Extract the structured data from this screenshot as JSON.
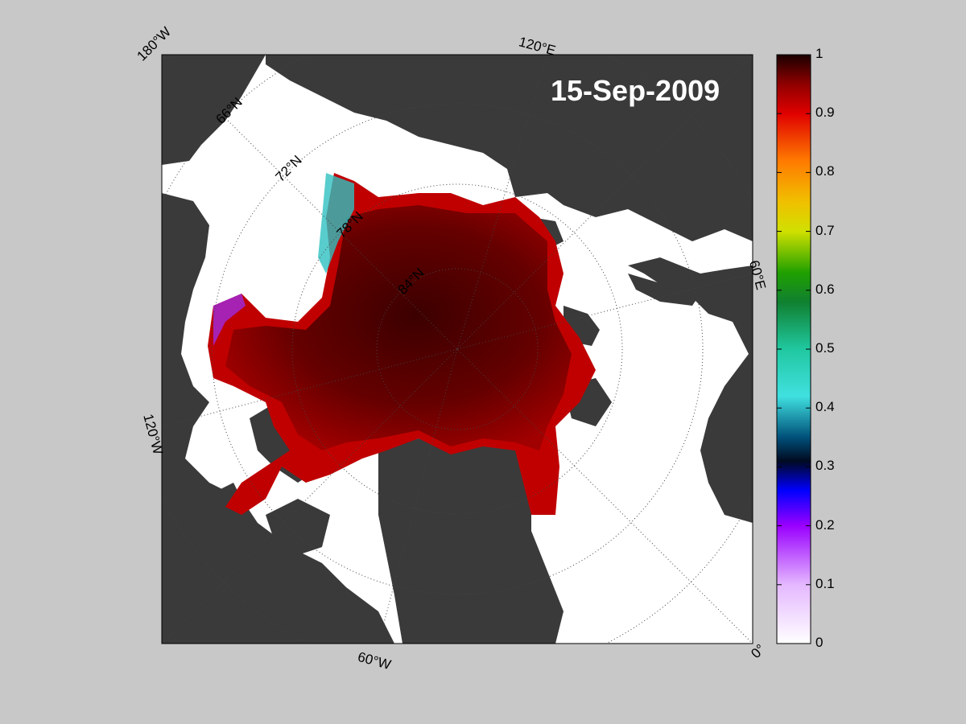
{
  "date": "15-Sep-2009",
  "longitude_labels": [
    "180°W",
    "120°E",
    "60°E",
    "0°",
    "60°W",
    "120°W"
  ],
  "latitude_labels": [
    "66°N",
    "72°N",
    "78°N",
    "84°N"
  ],
  "colorbar": {
    "ticks": [
      "1",
      "0.9",
      "0.8",
      "0.7",
      "0.6",
      "0.5",
      "0.4",
      "0.3",
      "0.2",
      "0.1",
      "0"
    ],
    "range": [
      0,
      1
    ]
  },
  "colors": {
    "land": "#3a3a3a",
    "ocean": "#ffffff",
    "background": "#c8c8c8",
    "ice_core": "#5a0000"
  }
}
